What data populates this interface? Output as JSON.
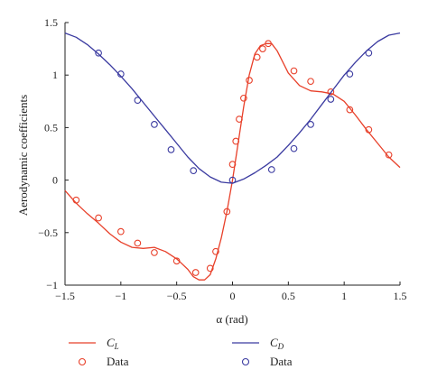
{
  "chart_data": {
    "type": "line",
    "xlabel": "α (rad)",
    "ylabel": "Aerodynamic coefficients",
    "xlim": [
      -1.5,
      1.5
    ],
    "ylim": [
      -1,
      1.5
    ],
    "xticks": [
      "−1.5",
      "−1",
      "−0.5",
      "0",
      "0.5",
      "1",
      "1.5"
    ],
    "yticks": [
      "−1",
      "−0.5",
      "0",
      "0.5",
      "1",
      "1.5"
    ],
    "grid": false,
    "legend_position": "bottom",
    "colors": {
      "cl": "#e8402a",
      "cd": "#3a3aa0"
    },
    "series": [
      {
        "name": "C_L",
        "kind": "line",
        "color": "#e8402a",
        "x": [
          -1.5,
          -1.4,
          -1.3,
          -1.2,
          -1.1,
          -1.0,
          -0.9,
          -0.8,
          -0.7,
          -0.6,
          -0.5,
          -0.45,
          -0.4,
          -0.35,
          -0.3,
          -0.25,
          -0.2,
          -0.15,
          -0.1,
          -0.05,
          0.0,
          0.05,
          0.1,
          0.15,
          0.2,
          0.25,
          0.3,
          0.35,
          0.4,
          0.5,
          0.6,
          0.7,
          0.8,
          0.9,
          1.0,
          1.1,
          1.2,
          1.3,
          1.4,
          1.5
        ],
        "y": [
          -0.1,
          -0.22,
          -0.32,
          -0.41,
          -0.51,
          -0.59,
          -0.64,
          -0.65,
          -0.64,
          -0.68,
          -0.75,
          -0.8,
          -0.85,
          -0.92,
          -0.95,
          -0.95,
          -0.9,
          -0.75,
          -0.55,
          -0.3,
          0.0,
          0.35,
          0.7,
          1.0,
          1.2,
          1.28,
          1.3,
          1.3,
          1.23,
          1.02,
          0.9,
          0.85,
          0.84,
          0.82,
          0.75,
          0.62,
          0.48,
          0.35,
          0.22,
          0.12
        ]
      },
      {
        "name": "Data",
        "kind": "markers",
        "color": "#e8402a",
        "x": [
          -1.4,
          -1.2,
          -1.0,
          -0.85,
          -0.7,
          -0.5,
          -0.33,
          -0.2,
          -0.15,
          -0.05,
          0.0,
          0.03,
          0.06,
          0.1,
          0.15,
          0.22,
          0.27,
          0.32,
          0.55,
          0.7,
          0.88,
          1.05,
          1.22,
          1.4
        ],
        "y": [
          -0.19,
          -0.36,
          -0.49,
          -0.6,
          -0.69,
          -0.77,
          -0.88,
          -0.84,
          -0.68,
          -0.3,
          0.15,
          0.37,
          0.58,
          0.78,
          0.95,
          1.17,
          1.25,
          1.3,
          1.04,
          0.94,
          0.84,
          0.67,
          0.48,
          0.24
        ]
      },
      {
        "name": "C_D",
        "kind": "line",
        "color": "#3a3aa0",
        "x": [
          -1.5,
          -1.4,
          -1.3,
          -1.2,
          -1.1,
          -1.0,
          -0.9,
          -0.8,
          -0.7,
          -0.6,
          -0.5,
          -0.4,
          -0.3,
          -0.2,
          -0.1,
          0.0,
          0.1,
          0.2,
          0.3,
          0.4,
          0.5,
          0.6,
          0.7,
          0.8,
          0.9,
          1.0,
          1.1,
          1.2,
          1.3,
          1.4,
          1.5
        ],
        "y": [
          1.4,
          1.36,
          1.29,
          1.2,
          1.1,
          0.99,
          0.87,
          0.74,
          0.61,
          0.48,
          0.35,
          0.22,
          0.11,
          0.03,
          -0.02,
          -0.03,
          0.01,
          0.07,
          0.14,
          0.22,
          0.33,
          0.45,
          0.58,
          0.72,
          0.86,
          1.0,
          1.12,
          1.23,
          1.32,
          1.38,
          1.4
        ]
      },
      {
        "name": "Data",
        "kind": "markers",
        "color": "#3a3aa0",
        "x": [
          -1.2,
          -1.0,
          -0.85,
          -0.7,
          -0.55,
          -0.35,
          0.0,
          0.35,
          0.55,
          0.7,
          0.88,
          1.05,
          1.22
        ],
        "y": [
          1.21,
          1.01,
          0.76,
          0.53,
          0.29,
          0.09,
          0.0,
          0.1,
          0.3,
          0.53,
          0.77,
          1.01,
          1.21
        ]
      }
    ],
    "legend": [
      {
        "label": "C",
        "sub": "L",
        "kind": "line",
        "color": "#e8402a"
      },
      {
        "label": "Data",
        "kind": "marker",
        "color": "#e8402a"
      },
      {
        "label": "C",
        "sub": "D",
        "kind": "line",
        "color": "#3a3aa0"
      },
      {
        "label": "Data",
        "kind": "marker",
        "color": "#3a3aa0"
      }
    ]
  }
}
